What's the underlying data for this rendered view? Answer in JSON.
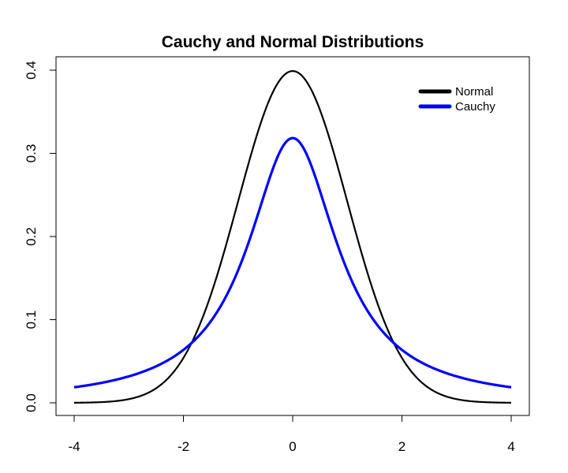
{
  "chart_data": {
    "type": "line",
    "title": "Cauchy and Normal Distributions",
    "xlabel": "",
    "ylabel": "",
    "xlim": [
      -4,
      4
    ],
    "ylim": [
      0,
      0.4
    ],
    "x_ticks": [
      -4,
      -2,
      0,
      2,
      4
    ],
    "x_tick_labels": [
      "-4",
      "-2",
      "0",
      "2",
      "4"
    ],
    "y_ticks": [
      0.0,
      0.1,
      0.2,
      0.3,
      0.4
    ],
    "y_tick_labels": [
      "0.0",
      "0.1",
      "0.2",
      "0.3",
      "0.4"
    ],
    "grid": false,
    "legend_position": "top-right",
    "series": [
      {
        "name": "Normal",
        "color": "#000000",
        "distribution": "normal",
        "x": [
          -4,
          -3.5,
          -3,
          -2.5,
          -2,
          -1.5,
          -1,
          -0.5,
          0,
          0.5,
          1,
          1.5,
          2,
          2.5,
          3,
          3.5,
          4
        ],
        "values": [
          0.0001,
          0.0009,
          0.0044,
          0.0175,
          0.054,
          0.1295,
          0.242,
          0.3521,
          0.3989,
          0.3521,
          0.242,
          0.1295,
          0.054,
          0.0175,
          0.0044,
          0.0009,
          0.0001
        ]
      },
      {
        "name": "Cauchy",
        "color": "#0000ff",
        "distribution": "cauchy",
        "x": [
          -4,
          -3.5,
          -3,
          -2.5,
          -2,
          -1.5,
          -1,
          -0.5,
          0,
          0.5,
          1,
          1.5,
          2,
          2.5,
          3,
          3.5,
          4
        ],
        "values": [
          0.0187,
          0.024,
          0.0318,
          0.0439,
          0.0637,
          0.0979,
          0.1592,
          0.2546,
          0.3183,
          0.2546,
          0.1592,
          0.0979,
          0.0637,
          0.0439,
          0.0318,
          0.024,
          0.0187
        ]
      }
    ]
  }
}
